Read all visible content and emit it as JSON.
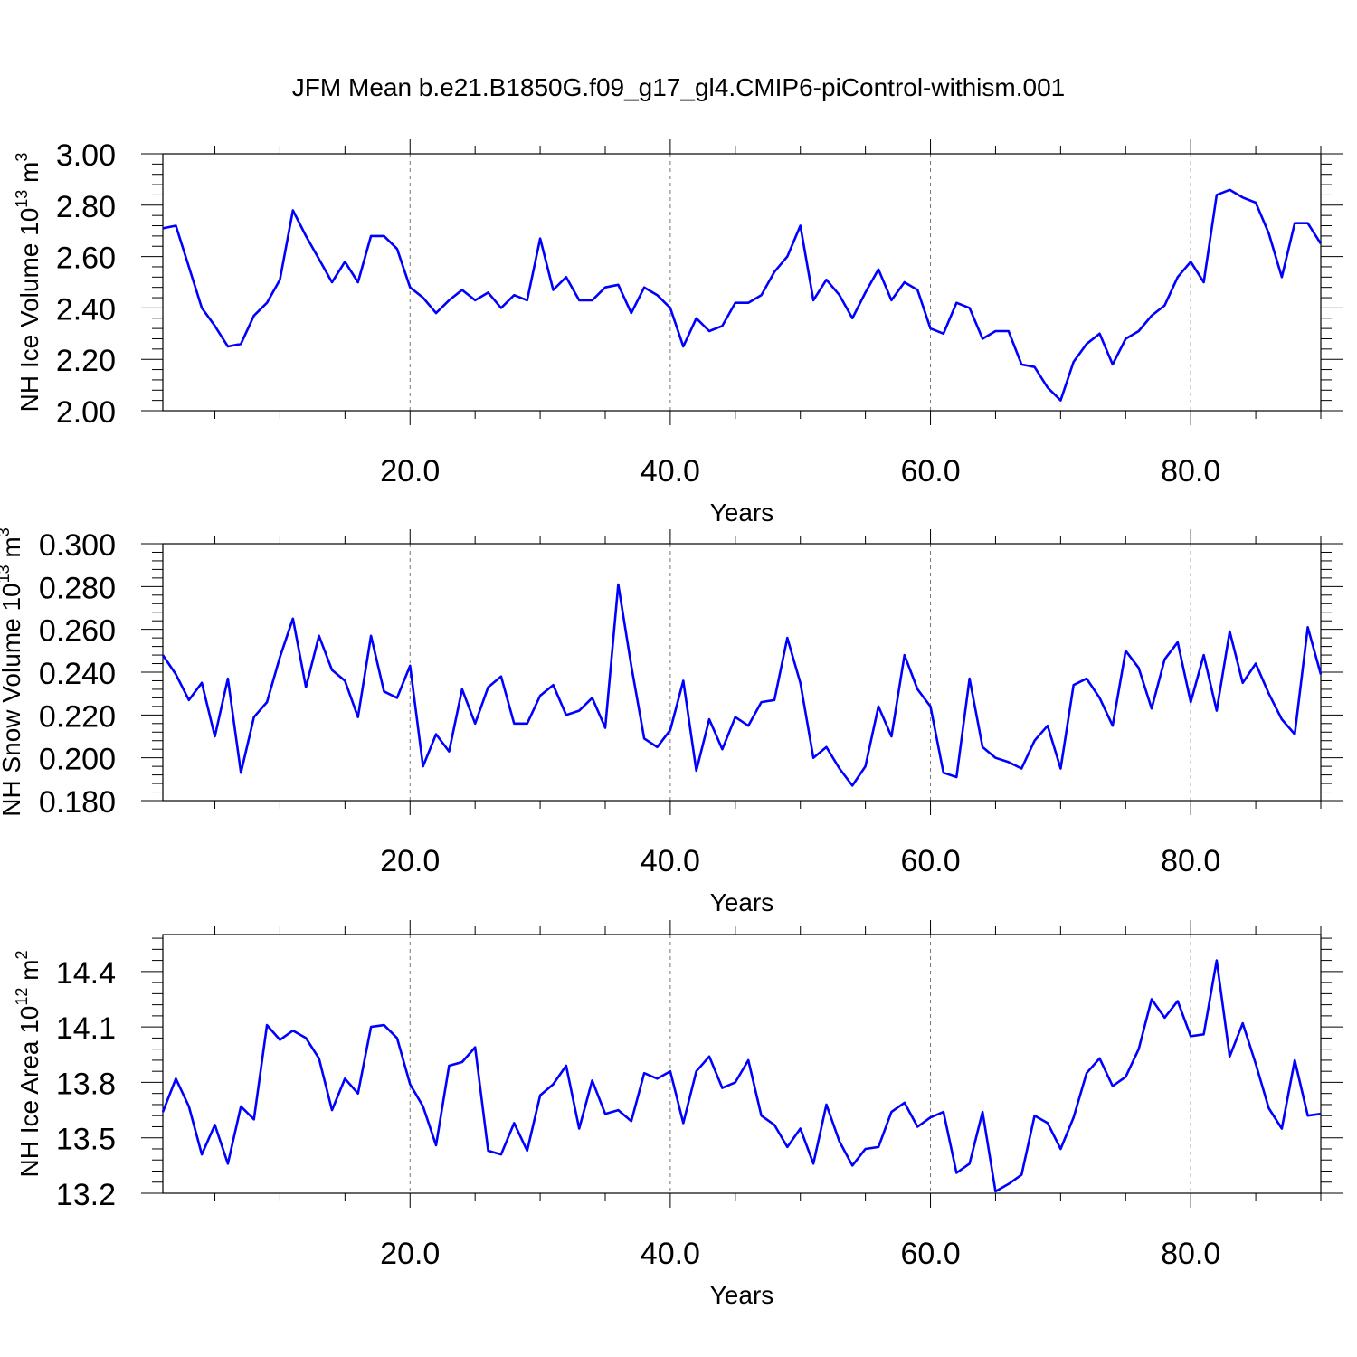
{
  "title": "JFM Mean b.e21.B1850G.f09_g17_gl4.CMIP6-piControl-withism.001",
  "colors": {
    "line": "#0000ff",
    "axis": "#000000",
    "grid": "#777777",
    "background": "#ffffff"
  },
  "chart_data": [
    {
      "type": "line",
      "xlabel": "Years",
      "ylabel": {
        "prefix": "NH Ice Volume 10",
        "exp": "13",
        "unit": " m",
        "unit_exp": "3"
      },
      "xlim": [
        1,
        90
      ],
      "ylim": [
        2.0,
        3.0
      ],
      "xticks": [
        20,
        40,
        60,
        80
      ],
      "xtick_labels": [
        "20.0",
        "40.0",
        "60.0",
        "80.0"
      ],
      "yticks": [
        2.0,
        2.2,
        2.4,
        2.6,
        2.8,
        3.0
      ],
      "ytick_labels": [
        "2.00",
        "2.20",
        "2.40",
        "2.60",
        "2.80",
        "3.00"
      ],
      "grid": "vertical dashed at major x ticks",
      "x": [
        1,
        2,
        3,
        4,
        5,
        6,
        7,
        8,
        9,
        10,
        11,
        12,
        13,
        14,
        15,
        16,
        17,
        18,
        19,
        20,
        21,
        22,
        23,
        24,
        25,
        26,
        27,
        28,
        29,
        30,
        31,
        32,
        33,
        34,
        35,
        36,
        37,
        38,
        39,
        40,
        41,
        42,
        43,
        44,
        45,
        46,
        47,
        48,
        49,
        50,
        51,
        52,
        53,
        54,
        55,
        56,
        57,
        58,
        59,
        60,
        61,
        62,
        63,
        64,
        65,
        66,
        67,
        68,
        69,
        70,
        71,
        72,
        73,
        74,
        75,
        76,
        77,
        78,
        79,
        80,
        81,
        82,
        83,
        84,
        85,
        86,
        87,
        88,
        89,
        90
      ],
      "values": [
        2.71,
        2.72,
        2.56,
        2.4,
        2.33,
        2.25,
        2.26,
        2.37,
        2.42,
        2.51,
        2.78,
        2.68,
        2.59,
        2.5,
        2.58,
        2.5,
        2.68,
        2.68,
        2.63,
        2.48,
        2.44,
        2.38,
        2.43,
        2.47,
        2.43,
        2.46,
        2.4,
        2.45,
        2.43,
        2.67,
        2.47,
        2.52,
        2.43,
        2.43,
        2.48,
        2.49,
        2.38,
        2.48,
        2.45,
        2.4,
        2.25,
        2.36,
        2.31,
        2.33,
        2.42,
        2.42,
        2.45,
        2.54,
        2.6,
        2.72,
        2.43,
        2.51,
        2.45,
        2.36,
        2.46,
        2.55,
        2.43,
        2.5,
        2.47,
        2.32,
        2.3,
        2.42,
        2.4,
        2.28,
        2.31,
        2.31,
        2.18,
        2.17,
        2.09,
        2.04,
        2.19,
        2.26,
        2.3,
        2.18,
        2.28,
        2.31,
        2.37,
        2.41,
        2.52,
        2.58,
        2.5,
        2.84,
        2.86,
        2.83,
        2.81,
        2.69,
        2.52,
        2.73,
        2.73,
        2.65
      ],
      "series": [
        {
          "values_ref": "values"
        }
      ]
    },
    {
      "type": "line",
      "xlabel": "Years",
      "ylabel": {
        "prefix": "NH Snow Volume 10",
        "exp": "13",
        "unit": " m",
        "unit_exp": "3"
      },
      "xlim": [
        1,
        90
      ],
      "ylim": [
        0.18,
        0.3
      ],
      "xticks": [
        20,
        40,
        60,
        80
      ],
      "xtick_labels": [
        "20.0",
        "40.0",
        "60.0",
        "80.0"
      ],
      "yticks": [
        0.18,
        0.2,
        0.22,
        0.24,
        0.26,
        0.28,
        0.3
      ],
      "ytick_labels": [
        "0.180",
        "0.200",
        "0.220",
        "0.240",
        "0.260",
        "0.280",
        "0.300"
      ],
      "grid": "vertical dashed at major x ticks",
      "x": [
        1,
        2,
        3,
        4,
        5,
        6,
        7,
        8,
        9,
        10,
        11,
        12,
        13,
        14,
        15,
        16,
        17,
        18,
        19,
        20,
        21,
        22,
        23,
        24,
        25,
        26,
        27,
        28,
        29,
        30,
        31,
        32,
        33,
        34,
        35,
        36,
        37,
        38,
        39,
        40,
        41,
        42,
        43,
        44,
        45,
        46,
        47,
        48,
        49,
        50,
        51,
        52,
        53,
        54,
        55,
        56,
        57,
        58,
        59,
        60,
        61,
        62,
        63,
        64,
        65,
        66,
        67,
        68,
        69,
        70,
        71,
        72,
        73,
        74,
        75,
        76,
        77,
        78,
        79,
        80,
        81,
        82,
        83,
        84,
        85,
        86,
        87,
        88,
        89,
        90
      ],
      "values": [
        0.248,
        0.239,
        0.227,
        0.235,
        0.21,
        0.237,
        0.193,
        0.219,
        0.226,
        0.247,
        0.265,
        0.233,
        0.257,
        0.241,
        0.236,
        0.219,
        0.257,
        0.231,
        0.228,
        0.243,
        0.196,
        0.211,
        0.203,
        0.232,
        0.216,
        0.233,
        0.238,
        0.216,
        0.216,
        0.229,
        0.234,
        0.22,
        0.222,
        0.228,
        0.214,
        0.281,
        0.243,
        0.209,
        0.205,
        0.213,
        0.236,
        0.194,
        0.218,
        0.204,
        0.219,
        0.215,
        0.226,
        0.227,
        0.256,
        0.235,
        0.2,
        0.205,
        0.195,
        0.187,
        0.196,
        0.224,
        0.21,
        0.248,
        0.232,
        0.224,
        0.193,
        0.191,
        0.237,
        0.205,
        0.2,
        0.198,
        0.195,
        0.208,
        0.215,
        0.195,
        0.234,
        0.237,
        0.228,
        0.215,
        0.25,
        0.242,
        0.223,
        0.246,
        0.254,
        0.226,
        0.248,
        0.222,
        0.259,
        0.235,
        0.244,
        0.23,
        0.218,
        0.211,
        0.261,
        0.239
      ],
      "series": [
        {
          "values_ref": "values"
        }
      ]
    },
    {
      "type": "line",
      "xlabel": "Years",
      "ylabel": {
        "prefix": "NH Ice Area 10",
        "exp": "12",
        "unit": " m",
        "unit_exp": "2"
      },
      "xlim": [
        1,
        90
      ],
      "ylim": [
        13.2,
        14.6
      ],
      "xticks": [
        20,
        40,
        60,
        80
      ],
      "xtick_labels": [
        "20.0",
        "40.0",
        "60.0",
        "80.0"
      ],
      "yticks": [
        13.2,
        13.5,
        13.8,
        14.1,
        14.4
      ],
      "ytick_labels": [
        "13.2",
        "13.5",
        "13.8",
        "14.1",
        "14.4"
      ],
      "grid": "vertical dashed at major x ticks",
      "x": [
        1,
        2,
        3,
        4,
        5,
        6,
        7,
        8,
        9,
        10,
        11,
        12,
        13,
        14,
        15,
        16,
        17,
        18,
        19,
        20,
        21,
        22,
        23,
        24,
        25,
        26,
        27,
        28,
        29,
        30,
        31,
        32,
        33,
        34,
        35,
        36,
        37,
        38,
        39,
        40,
        41,
        42,
        43,
        44,
        45,
        46,
        47,
        48,
        49,
        50,
        51,
        52,
        53,
        54,
        55,
        56,
        57,
        58,
        59,
        60,
        61,
        62,
        63,
        64,
        65,
        66,
        67,
        68,
        69,
        70,
        71,
        72,
        73,
        74,
        75,
        76,
        77,
        78,
        79,
        80,
        81,
        82,
        83,
        84,
        85,
        86,
        87,
        88,
        89,
        90
      ],
      "values": [
        13.64,
        13.82,
        13.67,
        13.41,
        13.57,
        13.36,
        13.67,
        13.6,
        14.11,
        14.03,
        14.08,
        14.04,
        13.93,
        13.65,
        13.82,
        13.74,
        14.1,
        14.11,
        14.04,
        13.79,
        13.67,
        13.46,
        13.89,
        13.91,
        13.99,
        13.43,
        13.41,
        13.58,
        13.43,
        13.73,
        13.79,
        13.89,
        13.55,
        13.81,
        13.63,
        13.65,
        13.59,
        13.85,
        13.82,
        13.86,
        13.58,
        13.86,
        13.94,
        13.77,
        13.8,
        13.92,
        13.62,
        13.57,
        13.45,
        13.55,
        13.36,
        13.68,
        13.48,
        13.35,
        13.44,
        13.45,
        13.64,
        13.69,
        13.56,
        13.61,
        13.64,
        13.31,
        13.36,
        13.64,
        13.21,
        13.25,
        13.3,
        13.62,
        13.58,
        13.44,
        13.61,
        13.85,
        13.93,
        13.78,
        13.83,
        13.98,
        14.25,
        14.15,
        14.24,
        14.05,
        14.06,
        14.46,
        13.94,
        14.12,
        13.9,
        13.66,
        13.55,
        13.92,
        13.62,
        13.63
      ],
      "series": [
        {
          "values_ref": "values"
        }
      ]
    }
  ]
}
